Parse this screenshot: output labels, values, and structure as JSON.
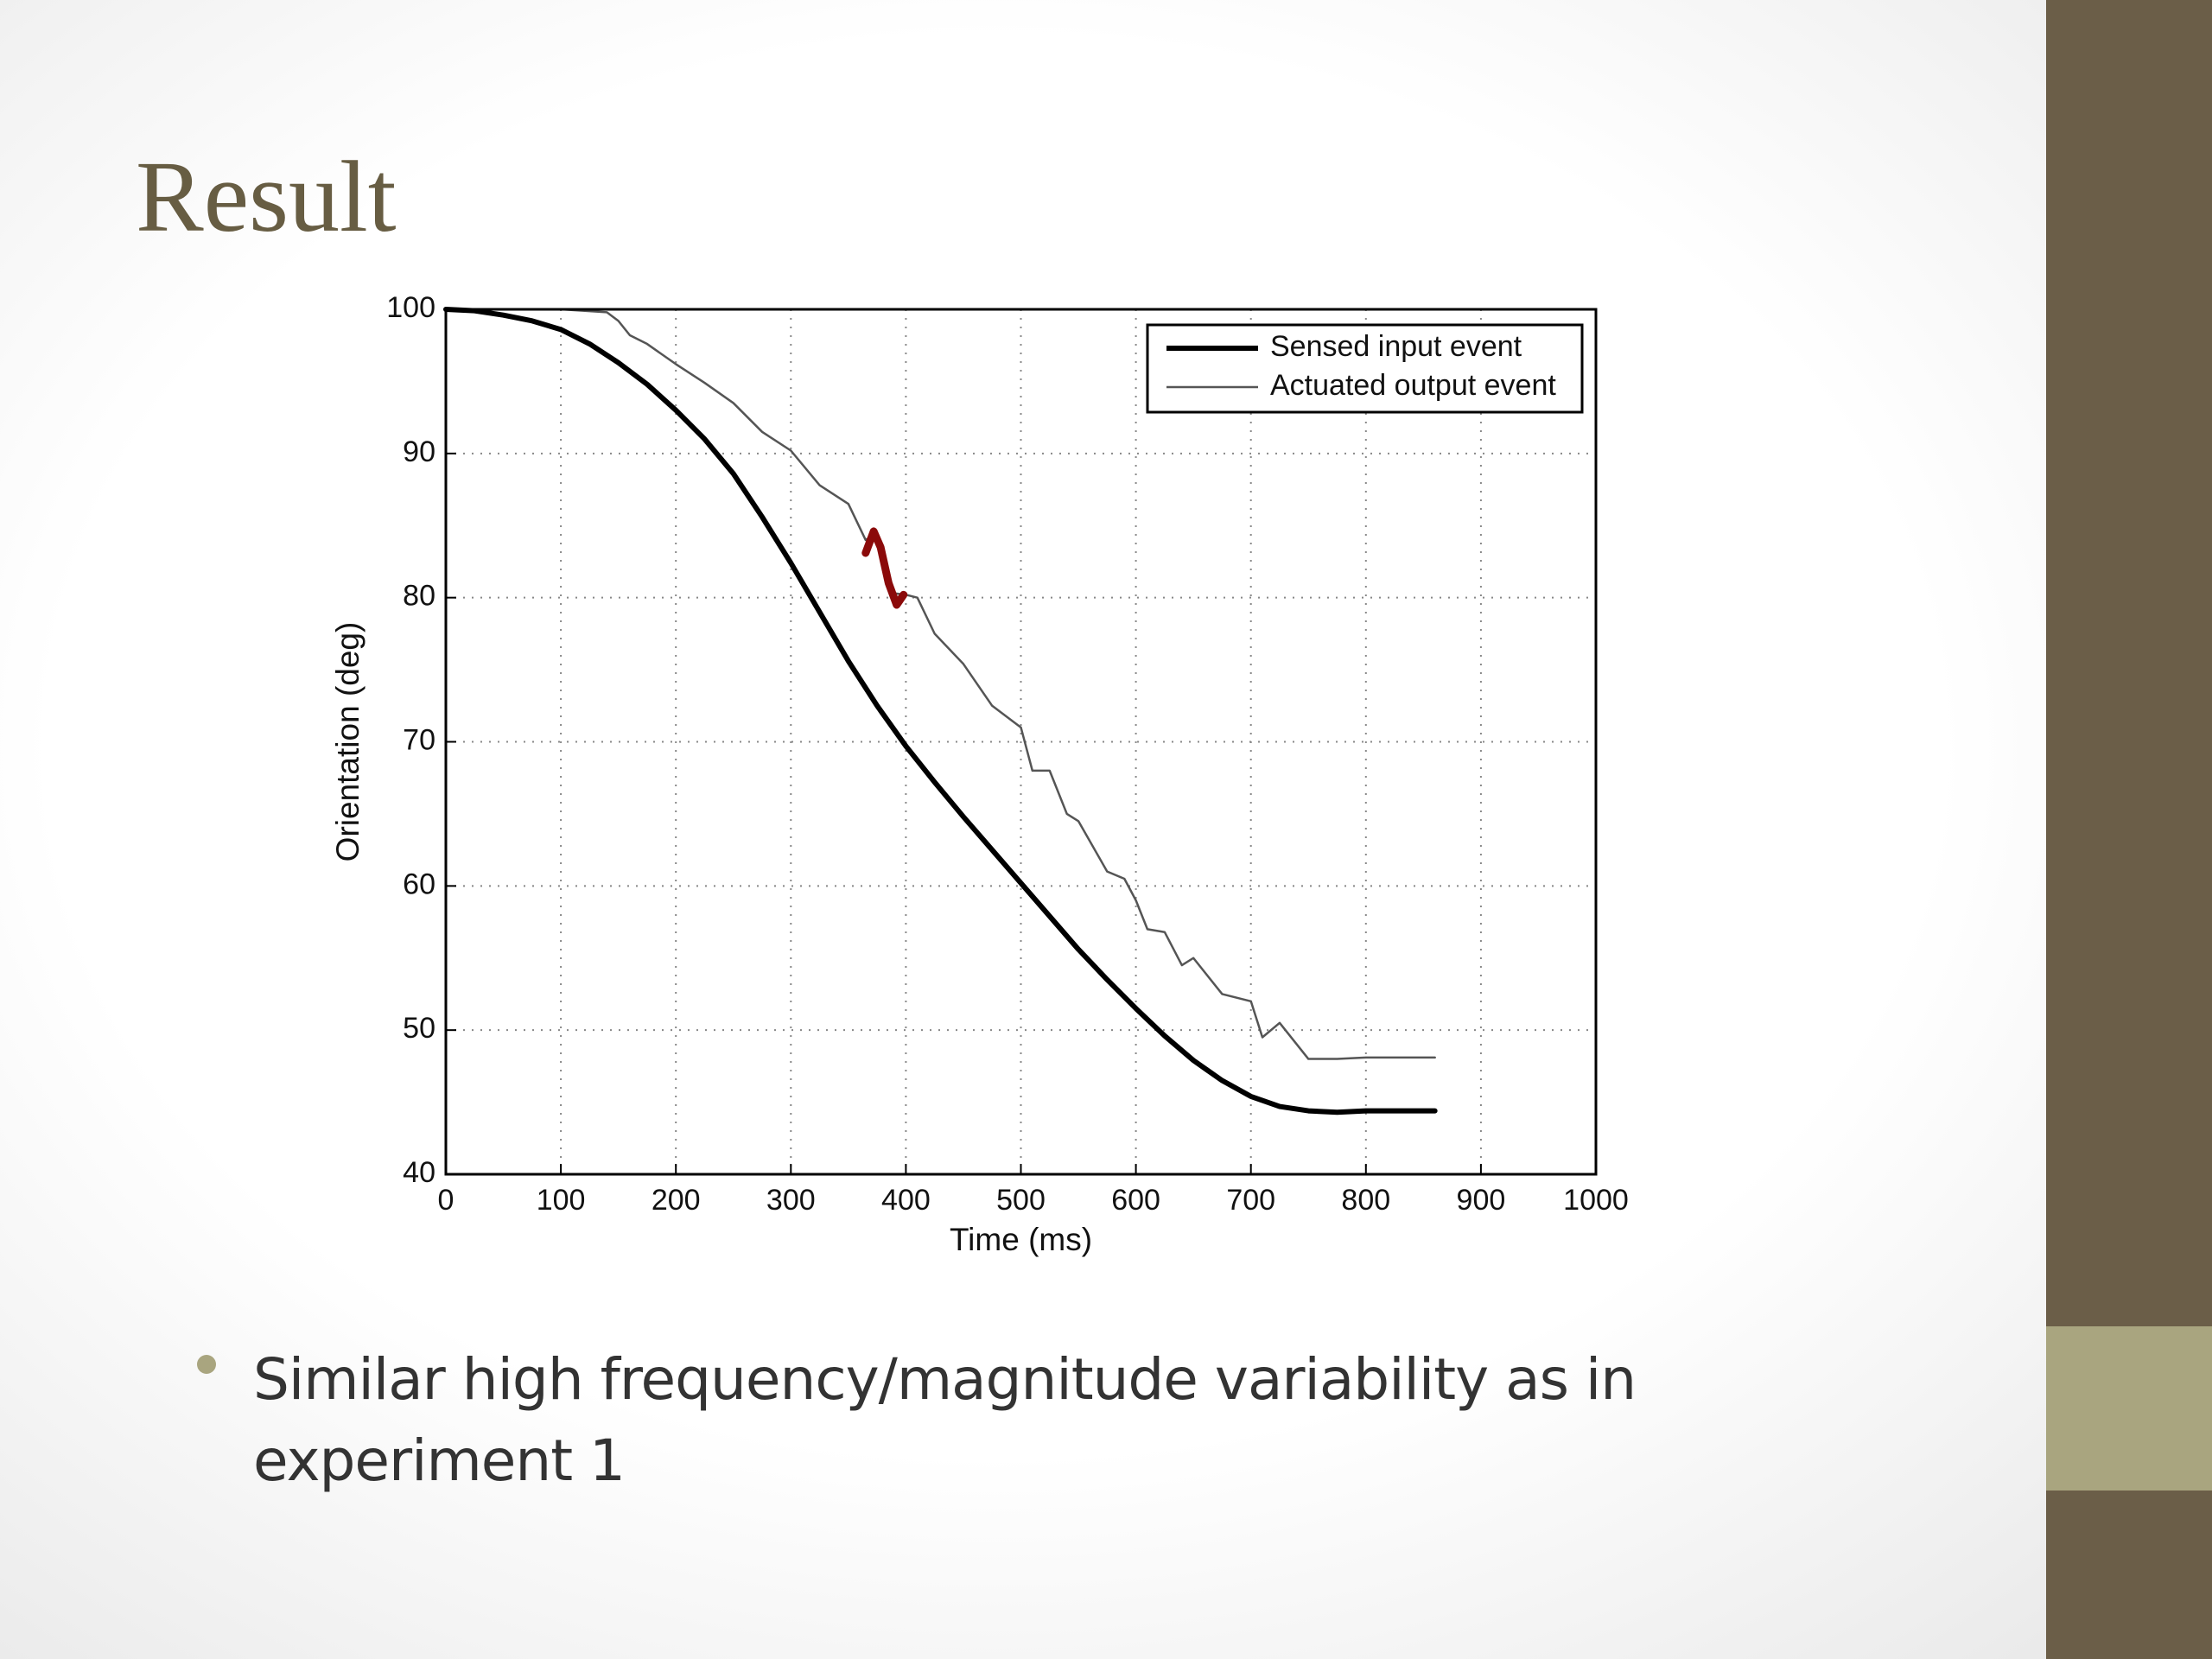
{
  "slide": {
    "title": "Result",
    "bullets": [
      "Similar high frequency/magnitude variability as in experiment 1"
    ]
  },
  "chart_data": {
    "type": "line",
    "xlabel": "Time (ms)",
    "ylabel": "Orientation (deg)",
    "xlim": [
      0,
      1000
    ],
    "ylim": [
      40,
      100
    ],
    "xticks": [
      0,
      100,
      200,
      300,
      400,
      500,
      600,
      700,
      800,
      900,
      1000
    ],
    "yticks": [
      40,
      50,
      60,
      70,
      80,
      90,
      100
    ],
    "grid": true,
    "legend": "upper-right",
    "series": [
      {
        "name": "Sensed input event",
        "color": "#000000",
        "linewidth": 6,
        "x": [
          0,
          25,
          50,
          75,
          100,
          125,
          150,
          175,
          200,
          225,
          250,
          275,
          300,
          325,
          350,
          375,
          400,
          425,
          450,
          475,
          500,
          525,
          550,
          575,
          600,
          625,
          650,
          675,
          700,
          725,
          750,
          775,
          800,
          825,
          860
        ],
        "values": [
          100,
          99.9,
          99.6,
          99.2,
          98.6,
          97.6,
          96.3,
          94.8,
          93.0,
          91.0,
          88.6,
          85.6,
          82.4,
          79.0,
          75.6,
          72.5,
          69.7,
          67.2,
          64.8,
          62.5,
          60.2,
          57.9,
          55.6,
          53.5,
          51.5,
          49.6,
          47.9,
          46.5,
          45.4,
          44.7,
          44.4,
          44.3,
          44.4,
          44.4,
          44.4
        ]
      },
      {
        "name": "Actuated output event",
        "color": "#555555",
        "linewidth": 2.5,
        "x": [
          0,
          50,
          100,
          140,
          150,
          160,
          175,
          200,
          225,
          250,
          275,
          300,
          325,
          350,
          365,
          375,
          390,
          400,
          410,
          425,
          450,
          475,
          500,
          510,
          525,
          540,
          550,
          575,
          590,
          600,
          610,
          625,
          640,
          650,
          675,
          700,
          710,
          725,
          750,
          775,
          800,
          825,
          860
        ],
        "values": [
          100,
          100,
          100,
          99.8,
          99.2,
          98.2,
          97.6,
          96.2,
          94.9,
          93.5,
          91.5,
          90.2,
          87.8,
          86.5,
          84.0,
          84.5,
          80.3,
          80.2,
          80.0,
          77.5,
          75.4,
          72.5,
          71.0,
          68.0,
          68.0,
          65.0,
          64.5,
          61.0,
          60.5,
          59.0,
          57.0,
          56.8,
          54.5,
          55.0,
          52.5,
          52.0,
          49.5,
          50.5,
          48.0,
          48.0,
          48.1,
          48.1,
          48.1
        ]
      }
    ],
    "highlight": {
      "color": "#8b0a0a",
      "linewidth": 9,
      "x": [
        365,
        372,
        378,
        385,
        392,
        398
      ],
      "values": [
        83.1,
        84.6,
        83.5,
        81.0,
        79.5,
        80.2
      ]
    }
  }
}
